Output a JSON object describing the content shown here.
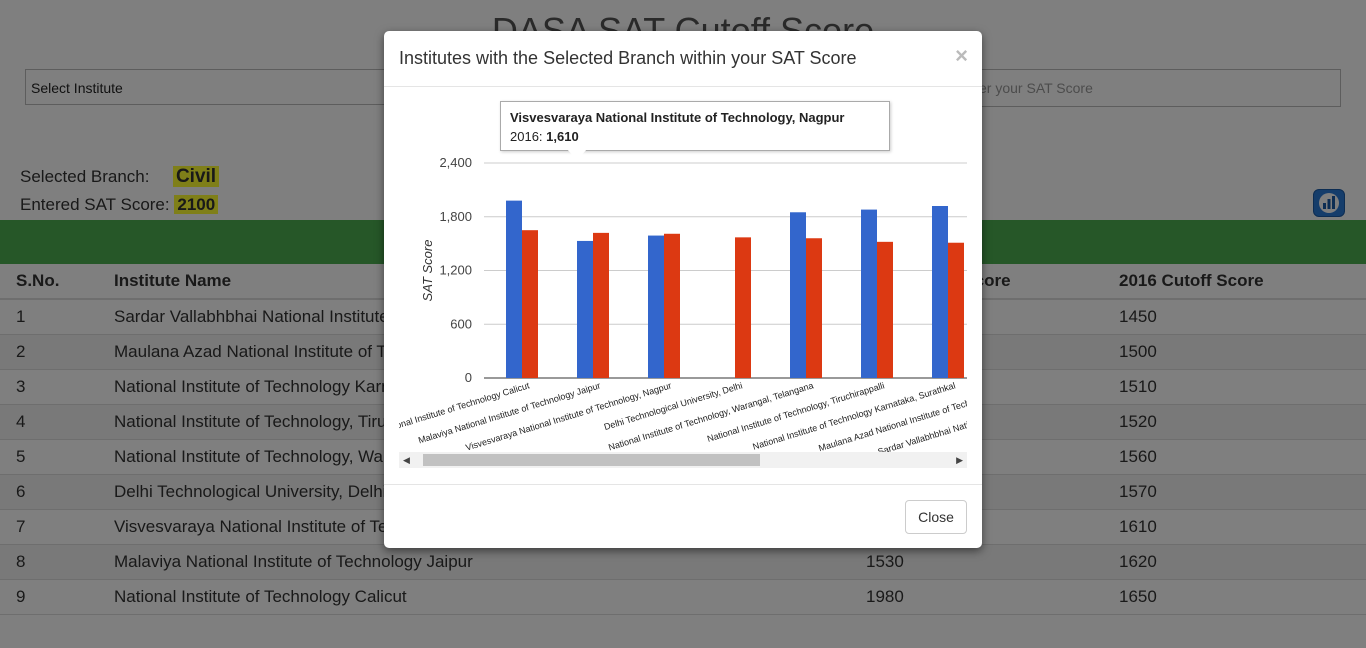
{
  "page": {
    "title": "DASA SAT Cutoff Score",
    "select_institute": "Select Institute",
    "sat_placeholder": "Enter your SAT Score",
    "branch_label": "Selected Branch:",
    "branch_value": "Civil",
    "sat_label": "Entered SAT Score:",
    "sat_value": "2100"
  },
  "table": {
    "headers": [
      "S.No.",
      "Institute Name",
      "2015 Cutoff Score",
      "2016 Cutoff Score"
    ],
    "rows": [
      [
        "1",
        "Sardar Vallabhbhai National Institute of Technology, Surat",
        "",
        "1450"
      ],
      [
        "2",
        "Maulana Azad National Institute of Technology, Bhopal",
        "",
        "1500"
      ],
      [
        "3",
        "National Institute of Technology Karnataka, Surathkal",
        "",
        "1510"
      ],
      [
        "4",
        "National Institute of Technology, Tiruchirappalli",
        "",
        "1520"
      ],
      [
        "5",
        "National Institute of Technology, Warangal, Telangana",
        "",
        "1560"
      ],
      [
        "6",
        "Delhi Technological University, Delhi",
        "",
        "1570"
      ],
      [
        "7",
        "Visvesvaraya National Institute of Technology, Nagpur",
        "",
        "1610"
      ],
      [
        "8",
        "Malaviya National Institute of Technology Jaipur",
        "1530",
        "1620"
      ],
      [
        "9",
        "National Institute of Technology Calicut",
        "1980",
        "1650"
      ]
    ]
  },
  "modal": {
    "title": "Institutes with the Selected Branch within your SAT Score",
    "close_symbol": "×",
    "close_label": "Close",
    "tooltip": {
      "institute": "Visvesvaraya National Institute of Technology, Nagpur",
      "series": "2016:",
      "value": "1,610"
    }
  },
  "chart_data": {
    "type": "bar",
    "ylabel": "SAT Score",
    "ylim": [
      0,
      2400
    ],
    "yticks": [
      "0",
      "600",
      "1,200",
      "1,800",
      "2,400"
    ],
    "categories": [
      "National Institute of Technology Calicut",
      "Malaviya National Institute of Technology Jaipur",
      "Visvesvaraya National Institute of Technology, Nagpur",
      "Delhi Technological University, Delhi",
      "National Institute of Technology, Warangal, Telangana",
      "National Institute of Technology, Tiruchirappalli",
      "National Institute of Technology Karnataka, Surathkal",
      "Maulana Azad National Institute of Technology, Bhopal",
      "Sardar Vallabhbhai National Institute of Technology, Surat"
    ],
    "series": [
      {
        "name": "2015",
        "color": "#3366cc",
        "values": [
          1980,
          1530,
          1590,
          null,
          1850,
          1880,
          1920,
          null,
          null
        ]
      },
      {
        "name": "2016",
        "color": "#dc3912",
        "values": [
          1650,
          1620,
          1610,
          1570,
          1560,
          1520,
          1510,
          1500,
          1450
        ]
      }
    ],
    "grid": true
  }
}
